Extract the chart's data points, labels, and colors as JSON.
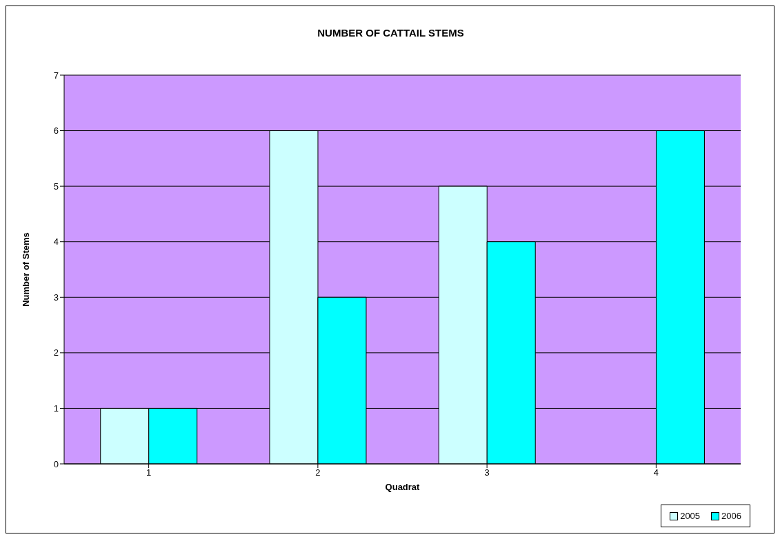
{
  "chart_data": {
    "type": "bar",
    "title": "NUMBER OF CATTAIL STEMS",
    "xlabel": "Quadrat",
    "ylabel": "Number of Stems",
    "categories": [
      "1",
      "2",
      "3",
      "4"
    ],
    "series": [
      {
        "name": "2005",
        "color": "#ccffff",
        "values": [
          1,
          6,
          5,
          0
        ]
      },
      {
        "name": "2006",
        "color": "#00ffff",
        "values": [
          1,
          3,
          4,
          6
        ]
      }
    ],
    "ylim": [
      0,
      7
    ],
    "yticks": [
      0,
      1,
      2,
      3,
      4,
      5,
      6,
      7
    ],
    "grid": "y",
    "legend": "bottom right"
  }
}
